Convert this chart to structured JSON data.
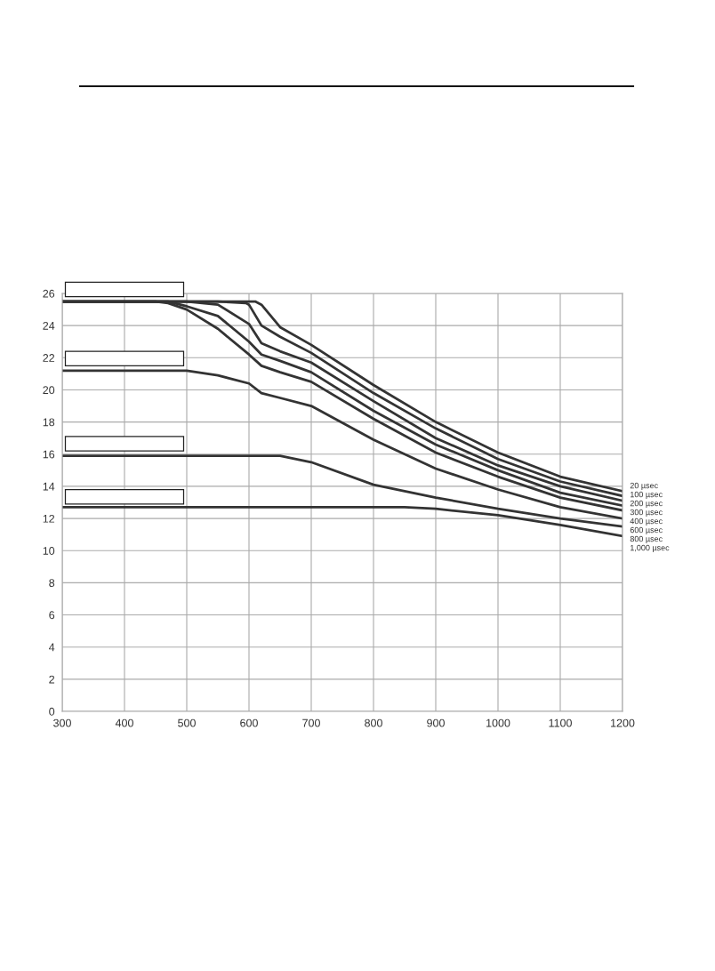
{
  "chart_data": {
    "type": "line",
    "xlim": [
      300,
      1200
    ],
    "xticks": [
      300,
      400,
      500,
      600,
      700,
      800,
      900,
      1000,
      1100,
      1200
    ],
    "ylim": [
      0,
      26
    ],
    "yticks": [
      0,
      2,
      4,
      6,
      8,
      10,
      12,
      14,
      16,
      18,
      20,
      22,
      24,
      26
    ],
    "grid": true,
    "line_style": "solid",
    "marker": "none",
    "series": [
      {
        "name": "20 µsec",
        "color": "#333333",
        "x": [
          300,
          500,
          600,
          610,
          620,
          650,
          700,
          800,
          900,
          1000,
          1100,
          1200
        ],
        "values": [
          25.5,
          25.5,
          25.5,
          25.5,
          25.3,
          23.9,
          22.8,
          20.3,
          18.0,
          16.1,
          14.6,
          13.7
        ]
      },
      {
        "name": "100 µsec",
        "color": "#333333",
        "x": [
          300,
          500,
          550,
          595,
          600,
          620,
          650,
          700,
          800,
          900,
          1000,
          1100,
          1200
        ],
        "values": [
          25.5,
          25.5,
          25.5,
          25.4,
          25.3,
          24.0,
          23.3,
          22.3,
          19.8,
          17.6,
          15.7,
          14.3,
          13.4
        ]
      },
      {
        "name": "200 µsec",
        "color": "#333333",
        "x": [
          300,
          500,
          550,
          600,
          620,
          650,
          700,
          800,
          900,
          1000,
          1100,
          1200
        ],
        "values": [
          25.5,
          25.5,
          25.3,
          24.1,
          22.9,
          22.4,
          21.7,
          19.3,
          17.0,
          15.3,
          14.0,
          13.1
        ]
      },
      {
        "name": "300 µsec",
        "color": "#333333",
        "x": [
          300,
          470,
          500,
          550,
          600,
          620,
          650,
          700,
          800,
          900,
          1000,
          1100,
          1200
        ],
        "values": [
          25.5,
          25.5,
          25.2,
          24.6,
          23.0,
          22.2,
          21.8,
          21.1,
          18.7,
          16.6,
          15.0,
          13.6,
          12.8
        ]
      },
      {
        "name": "400 µsec",
        "color": "#333333",
        "x": [
          300,
          450,
          470,
          500,
          550,
          600,
          620,
          650,
          700,
          800,
          900,
          1000,
          1100,
          1200
        ],
        "values": [
          25.5,
          25.5,
          25.4,
          25.0,
          23.8,
          22.2,
          21.5,
          21.1,
          20.5,
          18.2,
          16.1,
          14.6,
          13.3,
          12.5
        ]
      },
      {
        "name": "600 µsec",
        "color": "#333333",
        "x": [
          300,
          500,
          550,
          600,
          620,
          650,
          700,
          800,
          900,
          1000,
          1100,
          1200
        ],
        "values": [
          21.2,
          21.2,
          20.9,
          20.4,
          19.8,
          19.5,
          19.0,
          16.9,
          15.1,
          13.8,
          12.7,
          12.0
        ]
      },
      {
        "name": "800 µsec",
        "color": "#333333",
        "x": [
          300,
          600,
          650,
          700,
          800,
          900,
          1000,
          1100,
          1200
        ],
        "values": [
          15.9,
          15.9,
          15.9,
          15.5,
          14.1,
          13.3,
          12.6,
          12.0,
          11.5
        ]
      },
      {
        "name": "1,000 µsec",
        "color": "#333333",
        "x": [
          300,
          850,
          900,
          1000,
          1100,
          1200
        ],
        "values": [
          12.7,
          12.7,
          12.6,
          12.2,
          11.6,
          10.9
        ]
      }
    ]
  }
}
